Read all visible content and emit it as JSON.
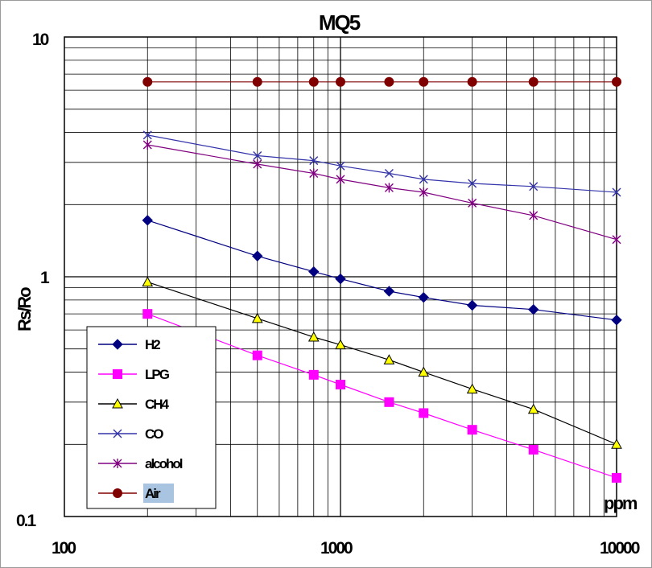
{
  "chart_data": {
    "type": "line",
    "title": "MQ5",
    "xlabel": "ppm",
    "ylabel": "Rs/Ro",
    "x_scale": "log",
    "y_scale": "log",
    "xlim": [
      100,
      10000
    ],
    "ylim": [
      0.1,
      10
    ],
    "x_tick_labels": [
      "100",
      "1000",
      "10000"
    ],
    "y_tick_labels": [
      "10",
      "1",
      "0.1"
    ],
    "grid": true,
    "legend_position": "bottom-left",
    "series": [
      {
        "name": "H2",
        "marker": "diamond",
        "color": "#000080",
        "x": [
          200,
          500,
          800,
          1000,
          1500,
          2000,
          3000,
          5000,
          10000
        ],
        "y": [
          1.72,
          1.22,
          1.05,
          0.98,
          0.87,
          0.82,
          0.76,
          0.73,
          0.66
        ]
      },
      {
        "name": "LPG",
        "marker": "square",
        "color": "#ff00ff",
        "x": [
          200,
          500,
          800,
          1000,
          1500,
          2000,
          3000,
          5000,
          10000
        ],
        "y": [
          0.7,
          0.47,
          0.39,
          0.355,
          0.3,
          0.27,
          0.23,
          0.19,
          0.145
        ]
      },
      {
        "name": "CH4",
        "marker": "triangle",
        "color": "#000000",
        "marker_fill": "#ffff00",
        "x": [
          200,
          500,
          800,
          1000,
          1500,
          2000,
          3000,
          5000,
          10000
        ],
        "y": [
          0.95,
          0.67,
          0.56,
          0.52,
          0.45,
          0.4,
          0.34,
          0.28,
          0.2
        ]
      },
      {
        "name": "CO",
        "marker": "x",
        "color": "#3333aa",
        "x": [
          200,
          500,
          800,
          1000,
          1500,
          2000,
          3000,
          5000,
          10000
        ],
        "y": [
          3.9,
          3.2,
          3.05,
          2.9,
          2.7,
          2.55,
          2.45,
          2.38,
          2.25
        ]
      },
      {
        "name": "alcohol",
        "marker": "star",
        "color": "#800080",
        "x": [
          200,
          500,
          800,
          1000,
          1500,
          2000,
          3000,
          5000,
          10000
        ],
        "y": [
          3.55,
          2.95,
          2.7,
          2.55,
          2.35,
          2.25,
          2.03,
          1.8,
          1.43
        ]
      },
      {
        "name": "Air",
        "marker": "circle",
        "color": "#800000",
        "x": [
          200,
          500,
          800,
          1000,
          1500,
          2000,
          3000,
          5000,
          10000
        ],
        "y": [
          6.5,
          6.5,
          6.5,
          6.5,
          6.5,
          6.5,
          6.5,
          6.5,
          6.5
        ]
      }
    ]
  }
}
